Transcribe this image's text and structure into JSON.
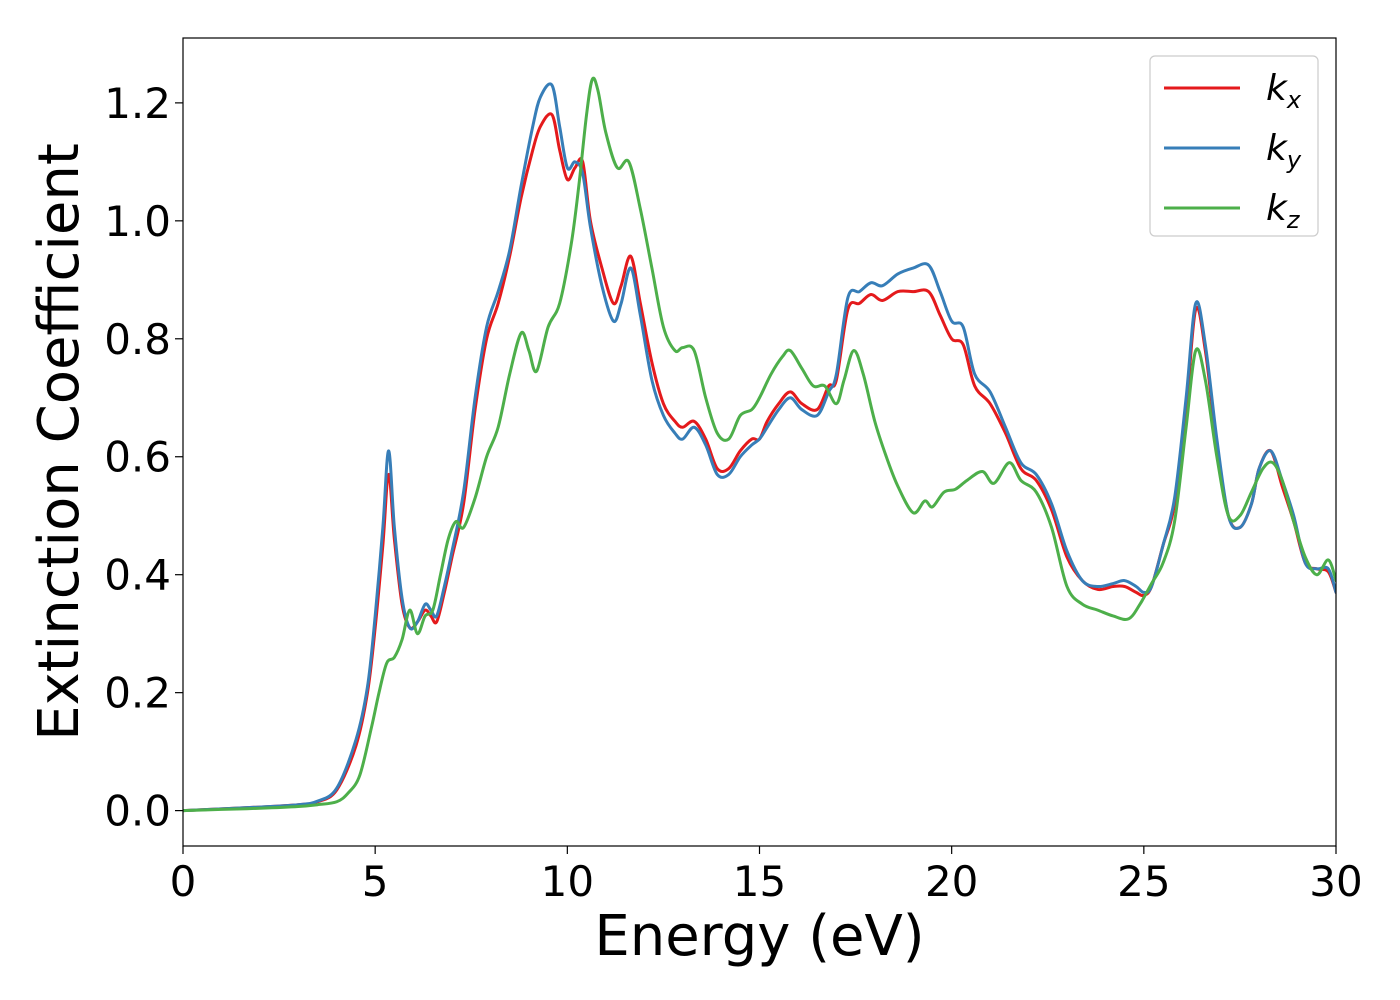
{
  "chart_data": {
    "type": "line",
    "xlabel": "Energy (eV)",
    "ylabel": "Extinction Coefficient",
    "xlim": [
      0,
      30
    ],
    "ylim": [
      -0.06,
      1.31
    ],
    "xticks": [
      0,
      5,
      10,
      15,
      20,
      25,
      30
    ],
    "xtick_labels": [
      "0",
      "5",
      "10",
      "15",
      "20",
      "25",
      "30"
    ],
    "yticks": [
      0.0,
      0.2,
      0.4,
      0.6,
      0.8,
      1.0,
      1.2
    ],
    "ytick_labels": [
      "0.0",
      "0.2",
      "0.4",
      "0.6",
      "0.8",
      "1.0",
      "1.2"
    ],
    "grid": false,
    "legend_position": "top-right",
    "series": [
      {
        "name": "k_x",
        "legend_base": "k",
        "legend_sub": "x",
        "color": "#e41a1c",
        "x": [
          0,
          1,
          2,
          3,
          3.5,
          4,
          4.5,
          4.8,
          5.0,
          5.2,
          5.35,
          5.5,
          5.7,
          5.9,
          6.1,
          6.3,
          6.45,
          6.6,
          6.8,
          7.0,
          7.3,
          7.6,
          7.9,
          8.2,
          8.5,
          8.8,
          9.1,
          9.3,
          9.6,
          9.8,
          10.0,
          10.2,
          10.4,
          10.6,
          10.9,
          11.2,
          11.4,
          11.65,
          11.9,
          12.2,
          12.5,
          12.8,
          13.0,
          13.3,
          13.6,
          13.9,
          14.2,
          14.5,
          14.8,
          15.0,
          15.2,
          15.5,
          15.8,
          16.1,
          16.5,
          16.8,
          17.0,
          17.3,
          17.6,
          17.9,
          18.2,
          18.6,
          19.0,
          19.4,
          19.7,
          20.0,
          20.3,
          20.6,
          21.0,
          21.4,
          21.8,
          22.2,
          22.6,
          23.0,
          23.4,
          23.8,
          24.2,
          24.5,
          24.8,
          25.0,
          25.2,
          25.5,
          25.8,
          26.1,
          26.35,
          26.6,
          26.9,
          27.2,
          27.5,
          27.8,
          28.0,
          28.3,
          28.6,
          28.9,
          29.2,
          29.5,
          29.8,
          30.0
        ],
        "values": [
          0,
          0.003,
          0.006,
          0.01,
          0.015,
          0.035,
          0.11,
          0.2,
          0.31,
          0.45,
          0.57,
          0.46,
          0.35,
          0.31,
          0.32,
          0.34,
          0.33,
          0.32,
          0.37,
          0.43,
          0.52,
          0.68,
          0.8,
          0.86,
          0.94,
          1.04,
          1.12,
          1.16,
          1.18,
          1.12,
          1.07,
          1.09,
          1.1,
          1.0,
          0.92,
          0.86,
          0.89,
          0.94,
          0.86,
          0.76,
          0.69,
          0.66,
          0.65,
          0.66,
          0.63,
          0.58,
          0.58,
          0.61,
          0.63,
          0.63,
          0.66,
          0.69,
          0.71,
          0.69,
          0.68,
          0.72,
          0.73,
          0.85,
          0.86,
          0.875,
          0.865,
          0.88,
          0.88,
          0.88,
          0.84,
          0.8,
          0.79,
          0.72,
          0.69,
          0.64,
          0.58,
          0.56,
          0.51,
          0.43,
          0.39,
          0.375,
          0.38,
          0.38,
          0.37,
          0.365,
          0.38,
          0.45,
          0.52,
          0.68,
          0.85,
          0.78,
          0.62,
          0.5,
          0.48,
          0.52,
          0.58,
          0.61,
          0.55,
          0.49,
          0.42,
          0.41,
          0.405,
          0.37
        ]
      },
      {
        "name": "k_y",
        "legend_base": "k",
        "legend_sub": "y",
        "color": "#377eb8",
        "x": [
          0,
          1,
          2,
          3,
          3.5,
          4,
          4.5,
          4.8,
          5.0,
          5.2,
          5.35,
          5.5,
          5.7,
          5.9,
          6.1,
          6.3,
          6.45,
          6.6,
          6.8,
          7.0,
          7.3,
          7.6,
          7.9,
          8.2,
          8.5,
          8.8,
          9.1,
          9.3,
          9.6,
          9.8,
          10.0,
          10.2,
          10.4,
          10.6,
          10.9,
          11.2,
          11.4,
          11.65,
          11.9,
          12.2,
          12.5,
          12.8,
          13.0,
          13.3,
          13.6,
          13.9,
          14.2,
          14.5,
          14.8,
          15.0,
          15.2,
          15.5,
          15.8,
          16.1,
          16.5,
          16.8,
          17.0,
          17.3,
          17.6,
          17.9,
          18.2,
          18.6,
          19.0,
          19.4,
          19.7,
          20.0,
          20.3,
          20.6,
          21.0,
          21.4,
          21.8,
          22.2,
          22.6,
          23.0,
          23.4,
          23.8,
          24.2,
          24.5,
          24.8,
          25.0,
          25.2,
          25.5,
          25.8,
          26.1,
          26.35,
          26.6,
          26.9,
          27.2,
          27.5,
          27.8,
          28.0,
          28.3,
          28.6,
          28.9,
          29.2,
          29.5,
          29.8,
          30.0
        ],
        "values": [
          0,
          0.003,
          0.006,
          0.01,
          0.016,
          0.038,
          0.12,
          0.21,
          0.33,
          0.48,
          0.61,
          0.48,
          0.36,
          0.31,
          0.32,
          0.35,
          0.34,
          0.33,
          0.38,
          0.44,
          0.54,
          0.7,
          0.82,
          0.88,
          0.95,
          1.06,
          1.16,
          1.21,
          1.23,
          1.16,
          1.09,
          1.1,
          1.08,
          0.99,
          0.89,
          0.83,
          0.86,
          0.92,
          0.84,
          0.73,
          0.67,
          0.64,
          0.63,
          0.65,
          0.62,
          0.57,
          0.57,
          0.6,
          0.62,
          0.63,
          0.65,
          0.68,
          0.7,
          0.68,
          0.67,
          0.71,
          0.74,
          0.87,
          0.88,
          0.895,
          0.89,
          0.91,
          0.92,
          0.925,
          0.88,
          0.83,
          0.82,
          0.74,
          0.71,
          0.65,
          0.59,
          0.57,
          0.52,
          0.44,
          0.39,
          0.38,
          0.385,
          0.39,
          0.38,
          0.37,
          0.38,
          0.45,
          0.53,
          0.7,
          0.86,
          0.79,
          0.63,
          0.5,
          0.48,
          0.52,
          0.58,
          0.61,
          0.56,
          0.5,
          0.42,
          0.41,
          0.41,
          0.37
        ]
      },
      {
        "name": "k_z",
        "legend_base": "k",
        "legend_sub": "z",
        "color": "#4daf4a",
        "x": [
          0,
          1,
          2,
          3,
          3.5,
          4,
          4.3,
          4.6,
          4.9,
          5.1,
          5.3,
          5.5,
          5.7,
          5.9,
          6.1,
          6.3,
          6.5,
          6.7,
          6.9,
          7.1,
          7.3,
          7.6,
          7.9,
          8.2,
          8.5,
          8.8,
          9.0,
          9.2,
          9.5,
          9.8,
          10.1,
          10.3,
          10.5,
          10.65,
          10.8,
          11.0,
          11.3,
          11.6,
          11.9,
          12.2,
          12.5,
          12.8,
          13.0,
          13.3,
          13.6,
          13.9,
          14.2,
          14.5,
          14.8,
          15.0,
          15.3,
          15.6,
          15.8,
          16.1,
          16.4,
          16.7,
          17.0,
          17.2,
          17.45,
          17.7,
          18.0,
          18.3,
          18.6,
          19.0,
          19.3,
          19.5,
          19.8,
          20.1,
          20.4,
          20.8,
          21.1,
          21.5,
          21.8,
          22.2,
          22.6,
          23.0,
          23.4,
          23.8,
          24.2,
          24.6,
          24.9,
          25.2,
          25.5,
          25.8,
          26.1,
          26.35,
          26.6,
          26.9,
          27.2,
          27.5,
          27.8,
          28.1,
          28.35,
          28.6,
          28.9,
          29.2,
          29.5,
          29.8,
          30.0
        ],
        "values": [
          0,
          0.002,
          0.004,
          0.007,
          0.01,
          0.015,
          0.03,
          0.06,
          0.14,
          0.2,
          0.25,
          0.26,
          0.29,
          0.34,
          0.3,
          0.33,
          0.34,
          0.4,
          0.46,
          0.49,
          0.48,
          0.53,
          0.6,
          0.65,
          0.74,
          0.81,
          0.78,
          0.745,
          0.82,
          0.86,
          0.96,
          1.06,
          1.18,
          1.24,
          1.22,
          1.15,
          1.09,
          1.1,
          1.02,
          0.92,
          0.82,
          0.78,
          0.785,
          0.78,
          0.7,
          0.64,
          0.63,
          0.67,
          0.68,
          0.7,
          0.74,
          0.77,
          0.78,
          0.75,
          0.72,
          0.72,
          0.69,
          0.73,
          0.78,
          0.74,
          0.66,
          0.6,
          0.55,
          0.505,
          0.525,
          0.515,
          0.54,
          0.545,
          0.56,
          0.575,
          0.555,
          0.59,
          0.56,
          0.54,
          0.48,
          0.38,
          0.35,
          0.34,
          0.33,
          0.325,
          0.35,
          0.385,
          0.42,
          0.49,
          0.65,
          0.78,
          0.73,
          0.6,
          0.5,
          0.5,
          0.54,
          0.58,
          0.59,
          0.56,
          0.49,
          0.43,
          0.4,
          0.425,
          0.39
        ]
      }
    ]
  }
}
